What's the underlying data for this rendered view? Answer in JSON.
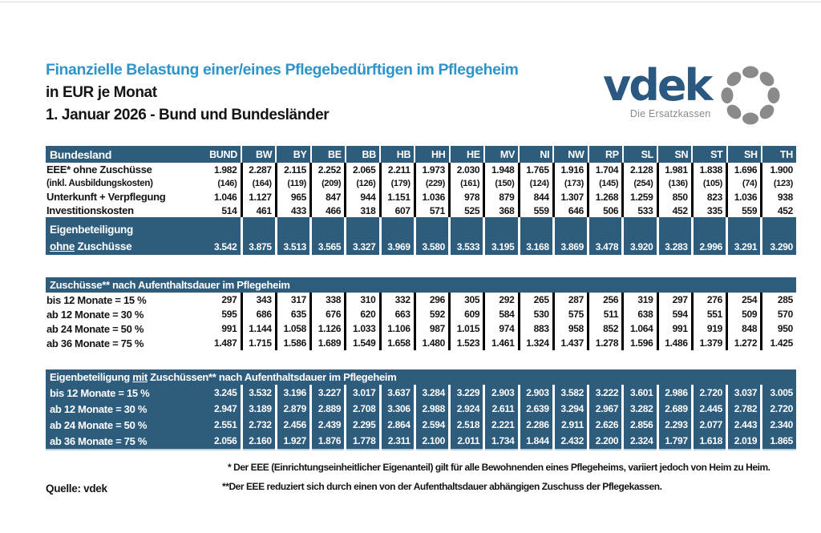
{
  "header": {
    "title": "Finanzielle Belastung einer/eines Pflegebedürftigen im Pflegeheim",
    "subtitle": "in EUR je Monat",
    "date_line": "1. Januar 2026 - Bund und Bundesländer"
  },
  "logo": {
    "name": "vdek",
    "tagline": "Die Ersatzkassen"
  },
  "colors": {
    "band_blue": "#2D5C7D",
    "title_blue": "#2E94C9",
    "logo_blue": "#2A5880",
    "logo_gray": "#8A8A8A",
    "separator_black": "#000000"
  },
  "table": {
    "label_header": "Bundesland",
    "columns": [
      "BUND",
      "BW",
      "BY",
      "BE",
      "BB",
      "HB",
      "HH",
      "HE",
      "MV",
      "NI",
      "NW",
      "RP",
      "SL",
      "SN",
      "ST",
      "SH",
      "TH"
    ],
    "section1": {
      "rows": [
        {
          "label": "EEE* ohne Zuschüsse",
          "small": false,
          "values": [
            "1.982",
            "2.287",
            "2.115",
            "2.252",
            "2.065",
            "2.211",
            "1.973",
            "2.030",
            "1.948",
            "1.765",
            "1.916",
            "1.704",
            "2.128",
            "1.981",
            "1.838",
            "1.696",
            "1.900"
          ]
        },
        {
          "label": "(inkl. Ausbildungskosten)",
          "small": true,
          "values": [
            "(146)",
            "(164)",
            "(119)",
            "(209)",
            "(126)",
            "(179)",
            "(229)",
            "(161)",
            "(150)",
            "(124)",
            "(173)",
            "(145)",
            "(254)",
            "(136)",
            "(105)",
            "(74)",
            "(123)"
          ]
        },
        {
          "label": "Unterkunft + Verpflegung",
          "small": false,
          "values": [
            "1.046",
            "1.127",
            "965",
            "847",
            "944",
            "1.151",
            "1.036",
            "978",
            "879",
            "844",
            "1.307",
            "1.268",
            "1.259",
            "850",
            "823",
            "1.036",
            "938"
          ]
        },
        {
          "label": "Investitionskosten",
          "small": false,
          "values": [
            "514",
            "461",
            "433",
            "466",
            "318",
            "607",
            "571",
            "525",
            "368",
            "559",
            "646",
            "506",
            "533",
            "452",
            "335",
            "559",
            "452"
          ]
        }
      ],
      "band": {
        "label_line1": "Eigenbeteiligung",
        "label_line2_underlined": "ohne",
        "label_line2_rest": " Zuschüsse",
        "values": [
          "3.542",
          "3.875",
          "3.513",
          "3.565",
          "3.327",
          "3.969",
          "3.580",
          "3.533",
          "3.195",
          "3.168",
          "3.869",
          "3.478",
          "3.920",
          "3.283",
          "2.996",
          "3.291",
          "3.290"
        ]
      }
    },
    "section2": {
      "header": "Zuschüsse** nach Aufenthaltsdauer im Pflegeheim",
      "rows": [
        {
          "label": "bis 12 Monate = 15 %",
          "values": [
            "297",
            "343",
            "317",
            "338",
            "310",
            "332",
            "296",
            "305",
            "292",
            "265",
            "287",
            "256",
            "319",
            "297",
            "276",
            "254",
            "285"
          ]
        },
        {
          "label": "ab 12 Monate  = 30 %",
          "values": [
            "595",
            "686",
            "635",
            "676",
            "620",
            "663",
            "592",
            "609",
            "584",
            "530",
            "575",
            "511",
            "638",
            "594",
            "551",
            "509",
            "570"
          ]
        },
        {
          "label": "ab 24 Monate  = 50 %",
          "values": [
            "991",
            "1.144",
            "1.058",
            "1.126",
            "1.033",
            "1.106",
            "987",
            "1.015",
            "974",
            "883",
            "958",
            "852",
            "1.064",
            "991",
            "919",
            "848",
            "950"
          ]
        },
        {
          "label": "ab 36 Monate  = 75 %",
          "values": [
            "1.487",
            "1.715",
            "1.586",
            "1.689",
            "1.549",
            "1.658",
            "1.480",
            "1.523",
            "1.461",
            "1.324",
            "1.437",
            "1.278",
            "1.596",
            "1.486",
            "1.379",
            "1.272",
            "1.425"
          ]
        }
      ]
    },
    "section3": {
      "header_pre": "Eigenbeteiligung ",
      "header_underlined": "mit",
      "header_post": " Zuschüssen** nach Aufenthaltsdauer im Pflegeheim",
      "rows": [
        {
          "label": "bis 12 Monate = 15 %",
          "values": [
            "3.245",
            "3.532",
            "3.196",
            "3.227",
            "3.017",
            "3.637",
            "3.284",
            "3.229",
            "2.903",
            "2.903",
            "3.582",
            "3.222",
            "3.601",
            "2.986",
            "2.720",
            "3.037",
            "3.005"
          ]
        },
        {
          "label": "ab 12 Monate  = 30 %",
          "values": [
            "2.947",
            "3.189",
            "2.879",
            "2.889",
            "2.708",
            "3.306",
            "2.988",
            "2.924",
            "2.611",
            "2.639",
            "3.294",
            "2.967",
            "3.282",
            "2.689",
            "2.445",
            "2.782",
            "2.720"
          ]
        },
        {
          "label": "ab 24 Monate  = 50 %",
          "values": [
            "2.551",
            "2.732",
            "2.456",
            "2.439",
            "2.295",
            "2.864",
            "2.594",
            "2.518",
            "2.221",
            "2.286",
            "2.911",
            "2.626",
            "2.856",
            "2.293",
            "2.077",
            "2.443",
            "2.340"
          ]
        },
        {
          "label": "ab 36 Monate  = 75 %",
          "values": [
            "2.056",
            "2.160",
            "1.927",
            "1.876",
            "1.778",
            "2.311",
            "2.100",
            "2.011",
            "1.734",
            "1.844",
            "2.432",
            "2.200",
            "2.324",
            "1.797",
            "1.618",
            "2.019",
            "1.865"
          ]
        }
      ]
    }
  },
  "footer": {
    "source": "Quelle: vdek",
    "footnote1": "* Der EEE (Einrichtungseinheitlicher Eigenanteil) gilt für alle Bewohnenden eines Pflegeheims, variiert jedoch von Heim zu Heim.",
    "footnote2": "**Der EEE reduziert sich durch einen von der Aufenthaltsdauer abhängigen Zuschuss der Pflegekassen."
  }
}
